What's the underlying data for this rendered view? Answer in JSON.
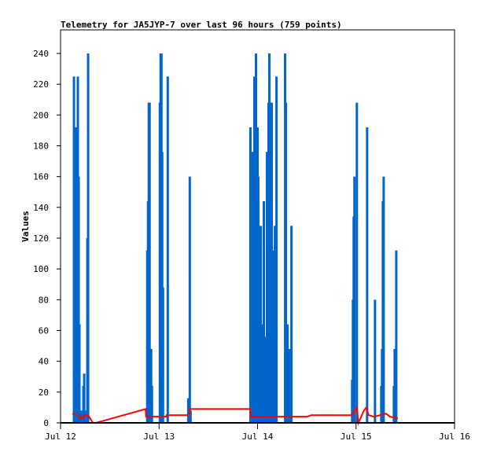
{
  "chart_data": {
    "type": "bar",
    "title": "Telemetry for JA5JYP-7 over last 96 hours (759 points)",
    "xlabel": "",
    "ylabel": "Values",
    "xlim": [
      "Jul 12 00:00",
      "Jul 16 00:00"
    ],
    "ylim": [
      0,
      240
    ],
    "x_ticks": [
      "Jul 12",
      "Jul 13",
      "Jul 14",
      "Jul 15",
      "Jul 16"
    ],
    "y_ticks": [
      0,
      20,
      40,
      60,
      80,
      100,
      120,
      140,
      160,
      180,
      200,
      220,
      240
    ],
    "grid": false,
    "colors": {
      "bars": "#0066cc",
      "line": "#ff0000"
    },
    "series": [
      {
        "type": "bar",
        "points": [
          [
            "Jul 12 03:16",
            225
          ],
          [
            "Jul 12 03:27",
            112
          ],
          [
            "Jul 12 03:39",
            152
          ],
          [
            "Jul 12 03:50",
            192
          ],
          [
            "Jul 12 04:02",
            192
          ],
          [
            "Jul 12 04:13",
            225
          ],
          [
            "Jul 12 04:25",
            160
          ],
          [
            "Jul 12 04:36",
            64
          ],
          [
            "Jul 12 05:00",
            8
          ],
          [
            "Jul 12 05:34",
            24
          ],
          [
            "Jul 12 05:46",
            32
          ],
          [
            "Jul 12 05:57",
            8
          ],
          [
            "Jul 12 06:32",
            120
          ],
          [
            "Jul 12 06:43",
            240
          ],
          [
            "Jul 12 21:07",
            112
          ],
          [
            "Jul 12 21:19",
            144
          ],
          [
            "Jul 12 21:30",
            208
          ],
          [
            "Jul 12 21:42",
            208
          ],
          [
            "Jul 12 22:05",
            48
          ],
          [
            "Jul 12 22:16",
            24
          ],
          [
            "Jul 13 00:12",
            208
          ],
          [
            "Jul 13 00:23",
            240
          ],
          [
            "Jul 13 00:35",
            240
          ],
          [
            "Jul 13 00:46",
            176
          ],
          [
            "Jul 13 00:58",
            88
          ],
          [
            "Jul 13 02:07",
            225
          ],
          [
            "Jul 13 07:07",
            16
          ],
          [
            "Jul 13 07:29",
            160
          ],
          [
            "Jul 13 07:41",
            8
          ],
          [
            "Jul 13 22:16",
            192
          ],
          [
            "Jul 13 22:51",
            176
          ],
          [
            "Jul 13 23:03",
            160
          ],
          [
            "Jul 13 23:14",
            225
          ],
          [
            "Jul 13 23:37",
            240
          ],
          [
            "Jul 14 00:00",
            192
          ],
          [
            "Jul 14 00:11",
            160
          ],
          [
            "Jul 14 00:35",
            112
          ],
          [
            "Jul 14 00:46",
            128
          ],
          [
            "Jul 14 01:09",
            64
          ],
          [
            "Jul 14 01:32",
            144
          ],
          [
            "Jul 14 01:44",
            16
          ],
          [
            "Jul 14 01:55",
            56
          ],
          [
            "Jul 14 02:18",
            176
          ],
          [
            "Jul 14 02:41",
            208
          ],
          [
            "Jul 14 02:53",
            240
          ],
          [
            "Jul 14 03:16",
            192
          ],
          [
            "Jul 14 03:27",
            208
          ],
          [
            "Jul 14 03:51",
            112
          ],
          [
            "Jul 14 04:14",
            128
          ],
          [
            "Jul 14 04:37",
            225
          ],
          [
            "Jul 14 06:43",
            240
          ],
          [
            "Jul 14 06:55",
            208
          ],
          [
            "Jul 14 07:18",
            64
          ],
          [
            "Jul 14 07:29",
            48
          ],
          [
            "Jul 14 07:53",
            48
          ],
          [
            "Jul 14 08:16",
            128
          ],
          [
            "Jul 14 23:03",
            28
          ],
          [
            "Jul 14 23:14",
            80
          ],
          [
            "Jul 14 23:26",
            134
          ],
          [
            "Jul 14 23:37",
            160
          ],
          [
            "Jul 15 00:12",
            208
          ],
          [
            "Jul 15 02:42",
            192
          ],
          [
            "Jul 15 04:37",
            80
          ],
          [
            "Jul 15 06:09",
            24
          ],
          [
            "Jul 15 06:20",
            48
          ],
          [
            "Jul 15 06:32",
            144
          ],
          [
            "Jul 15 06:44",
            160
          ],
          [
            "Jul 15 09:13",
            24
          ],
          [
            "Jul 15 09:25",
            48
          ],
          [
            "Jul 15 09:48",
            112
          ]
        ]
      },
      {
        "type": "line",
        "points": [
          [
            "Jul 12 02:53",
            6
          ],
          [
            "Jul 12 04:36",
            5
          ],
          [
            "Jul 12 04:40",
            3
          ],
          [
            "Jul 12 05:34",
            3
          ],
          [
            "Jul 12 05:40",
            5
          ],
          [
            "Jul 12 06:43",
            5
          ],
          [
            "Jul 12 07:52",
            0
          ],
          [
            "Jul 12 08:38",
            0
          ],
          [
            "Jul 12 20:44",
            9
          ],
          [
            "Jul 12 20:50",
            4
          ],
          [
            "Jul 13 01:44",
            4
          ],
          [
            "Jul 13 01:50",
            5
          ],
          [
            "Jul 13 07:18",
            5
          ],
          [
            "Jul 13 07:29",
            9
          ],
          [
            "Jul 13 22:16",
            9
          ],
          [
            "Jul 13 22:22",
            4
          ],
          [
            "Jul 14 12:06",
            4
          ],
          [
            "Jul 14 13:03",
            5
          ],
          [
            "Jul 14 22:51",
            5
          ],
          [
            "Jul 15 00:12",
            10
          ],
          [
            "Jul 15 00:35",
            0
          ],
          [
            "Jul 15 01:55",
            8
          ],
          [
            "Jul 15 02:30",
            10
          ],
          [
            "Jul 15 03:04",
            5
          ],
          [
            "Jul 15 04:25",
            4
          ],
          [
            "Jul 15 07:18",
            6
          ],
          [
            "Jul 15 08:16",
            4
          ],
          [
            "Jul 15 10:11",
            3
          ]
        ]
      }
    ]
  }
}
